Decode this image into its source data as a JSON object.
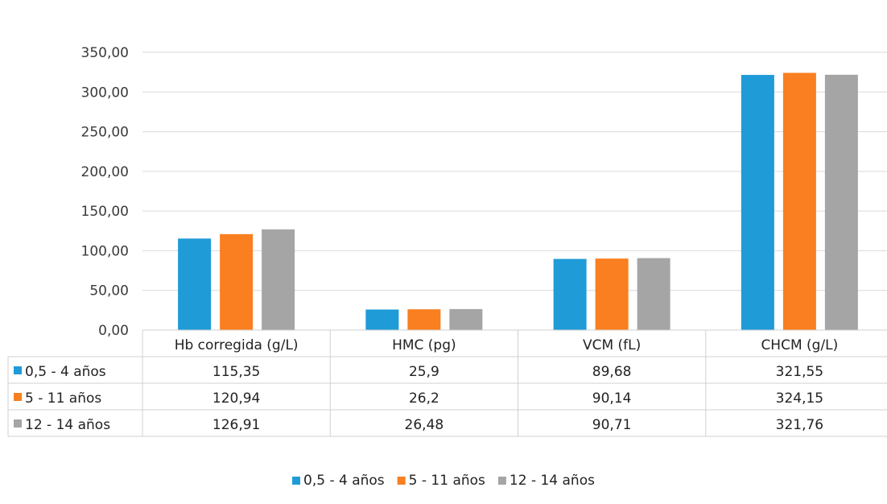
{
  "chart_data": {
    "type": "bar",
    "categories": [
      "Hb corregida (g/L)",
      "HMC (pg)",
      "VCM (fL)",
      "CHCM (g/L)"
    ],
    "series": [
      {
        "name": "0,5 - 4 años",
        "values": [
          115.35,
          25.9,
          89.68,
          321.55
        ],
        "labels": [
          "115,35",
          "25,9",
          "89,68",
          "321,55"
        ],
        "color": "#1f9bd7"
      },
      {
        "name": "5 - 11 años",
        "values": [
          120.94,
          26.2,
          90.14,
          324.15
        ],
        "labels": [
          "120,94",
          "26,2",
          "90,14",
          "324,15"
        ],
        "color": "#f97f20"
      },
      {
        "name": "12 - 14 años",
        "values": [
          126.91,
          26.48,
          90.71,
          321.76
        ],
        "labels": [
          "126,91",
          "26,48",
          "90,71",
          "321,76"
        ],
        "color": "#a5a5a5"
      }
    ],
    "yticks": [
      "0,00",
      "50,00",
      "100,00",
      "150,00",
      "200,00",
      "250,00",
      "300,00",
      "350,00"
    ],
    "ylim": [
      0,
      350
    ],
    "grid": true,
    "data_table": true,
    "legend": "bottom"
  }
}
